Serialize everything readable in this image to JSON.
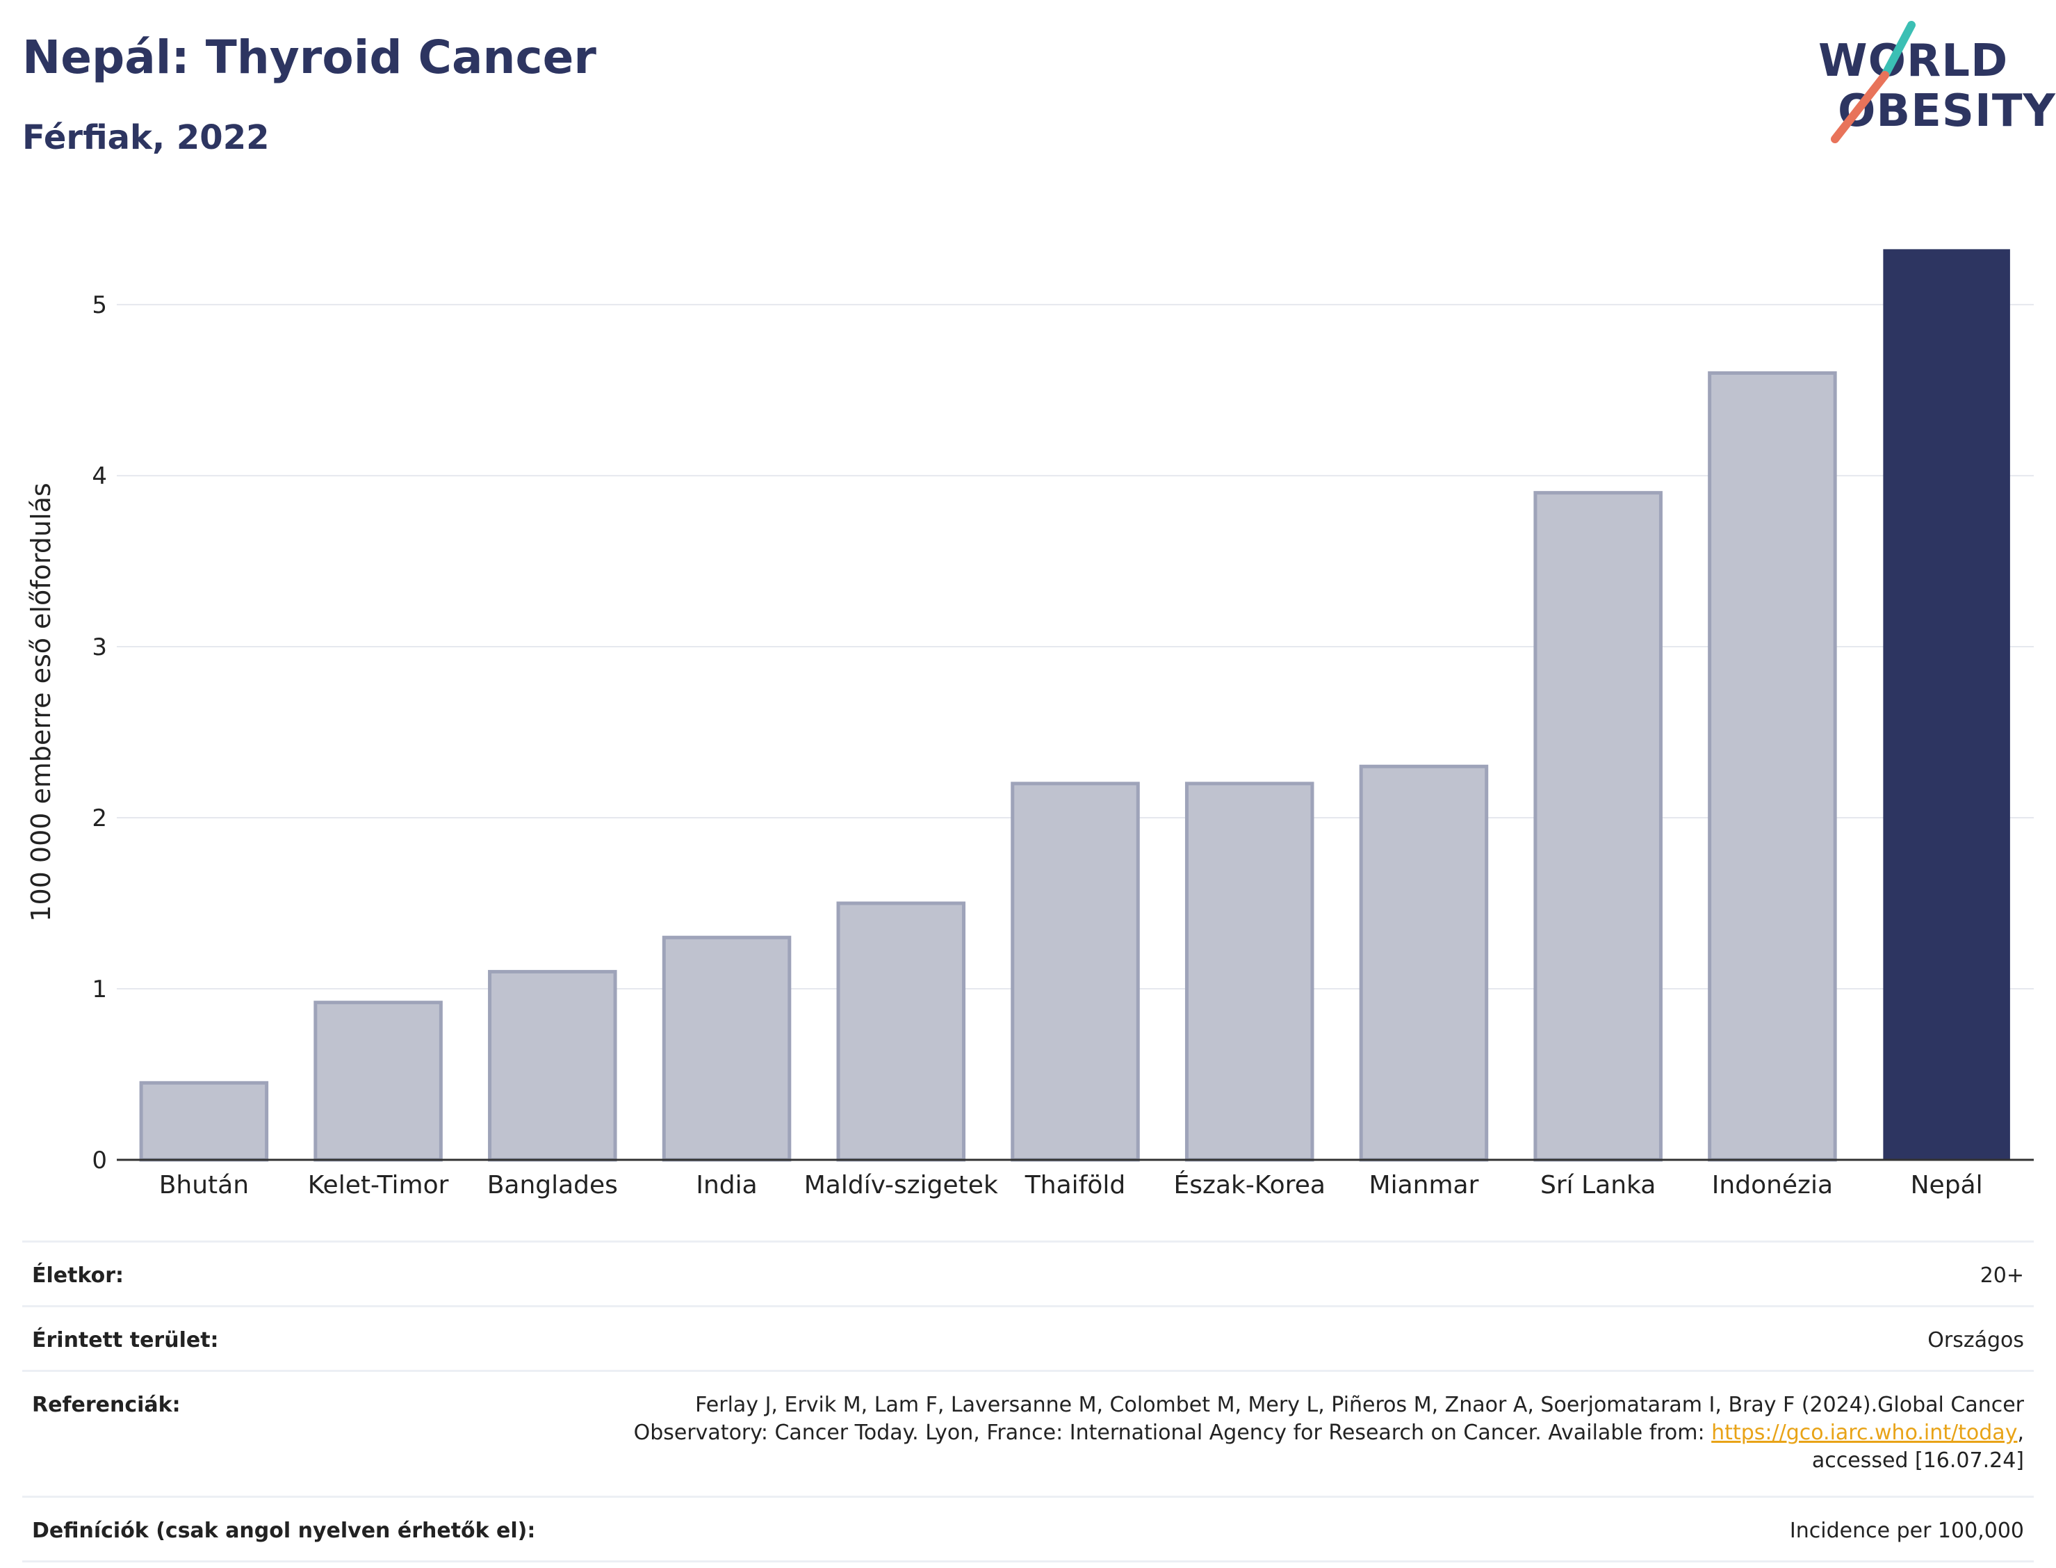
{
  "title": "Nepál: Thyroid Cancer",
  "subtitle": "Férfiak, 2022",
  "logo": {
    "line1": "WORLD",
    "line2": "OBESITY",
    "accent_colors": [
      "#3bbfb4",
      "#e8735a"
    ]
  },
  "colors": {
    "highlight": "#2d3561",
    "bar_fill": "#bfc2cf",
    "bar_edge": "#9ea3b9"
  },
  "chart_data": {
    "type": "bar",
    "title": "Nepál: Thyroid Cancer",
    "subtitle": "Férfiak, 2022",
    "xlabel": "",
    "ylabel": "100 000 emberre eső előfordulás",
    "categories": [
      "Bhután",
      "Kelet-Timor",
      "Banglades",
      "India",
      "Maldív-szigetek",
      "Thaiföld",
      "Észak-Korea",
      "Mianmar",
      "Srí Lanka",
      "Indonézia",
      "Nepál"
    ],
    "values": [
      0.45,
      0.92,
      1.1,
      1.3,
      1.5,
      2.2,
      2.2,
      2.3,
      3.9,
      4.6,
      5.32
    ],
    "highlight": "Nepál",
    "yticks": [
      0,
      1,
      2,
      3,
      4,
      5
    ],
    "ylim": [
      0,
      5.35
    ],
    "grid": true,
    "legend": "none"
  },
  "footer": {
    "rows": [
      {
        "key": "Életkor:",
        "value": "20+"
      },
      {
        "key": "Érintett terület:",
        "value": "Országos"
      }
    ],
    "references": {
      "key": "Referenciák:",
      "text1": "Ferlay J, Ervik M, Lam F, Laversanne M, Colombet M, Mery L, Piñeros M, Znaor A, Soerjomataram I, Bray F (2024).Global Cancer Observatory: Cancer Today. Lyon, France: International Agency for Research on Cancer. Available from: ",
      "link": "https://gco.iarc.who.int/today",
      "text2": ", accessed [16.07.24]"
    },
    "definitions": {
      "key": "Definíciók (csak angol nyelven érhetők el):",
      "value": "Incidence per 100,000"
    }
  }
}
